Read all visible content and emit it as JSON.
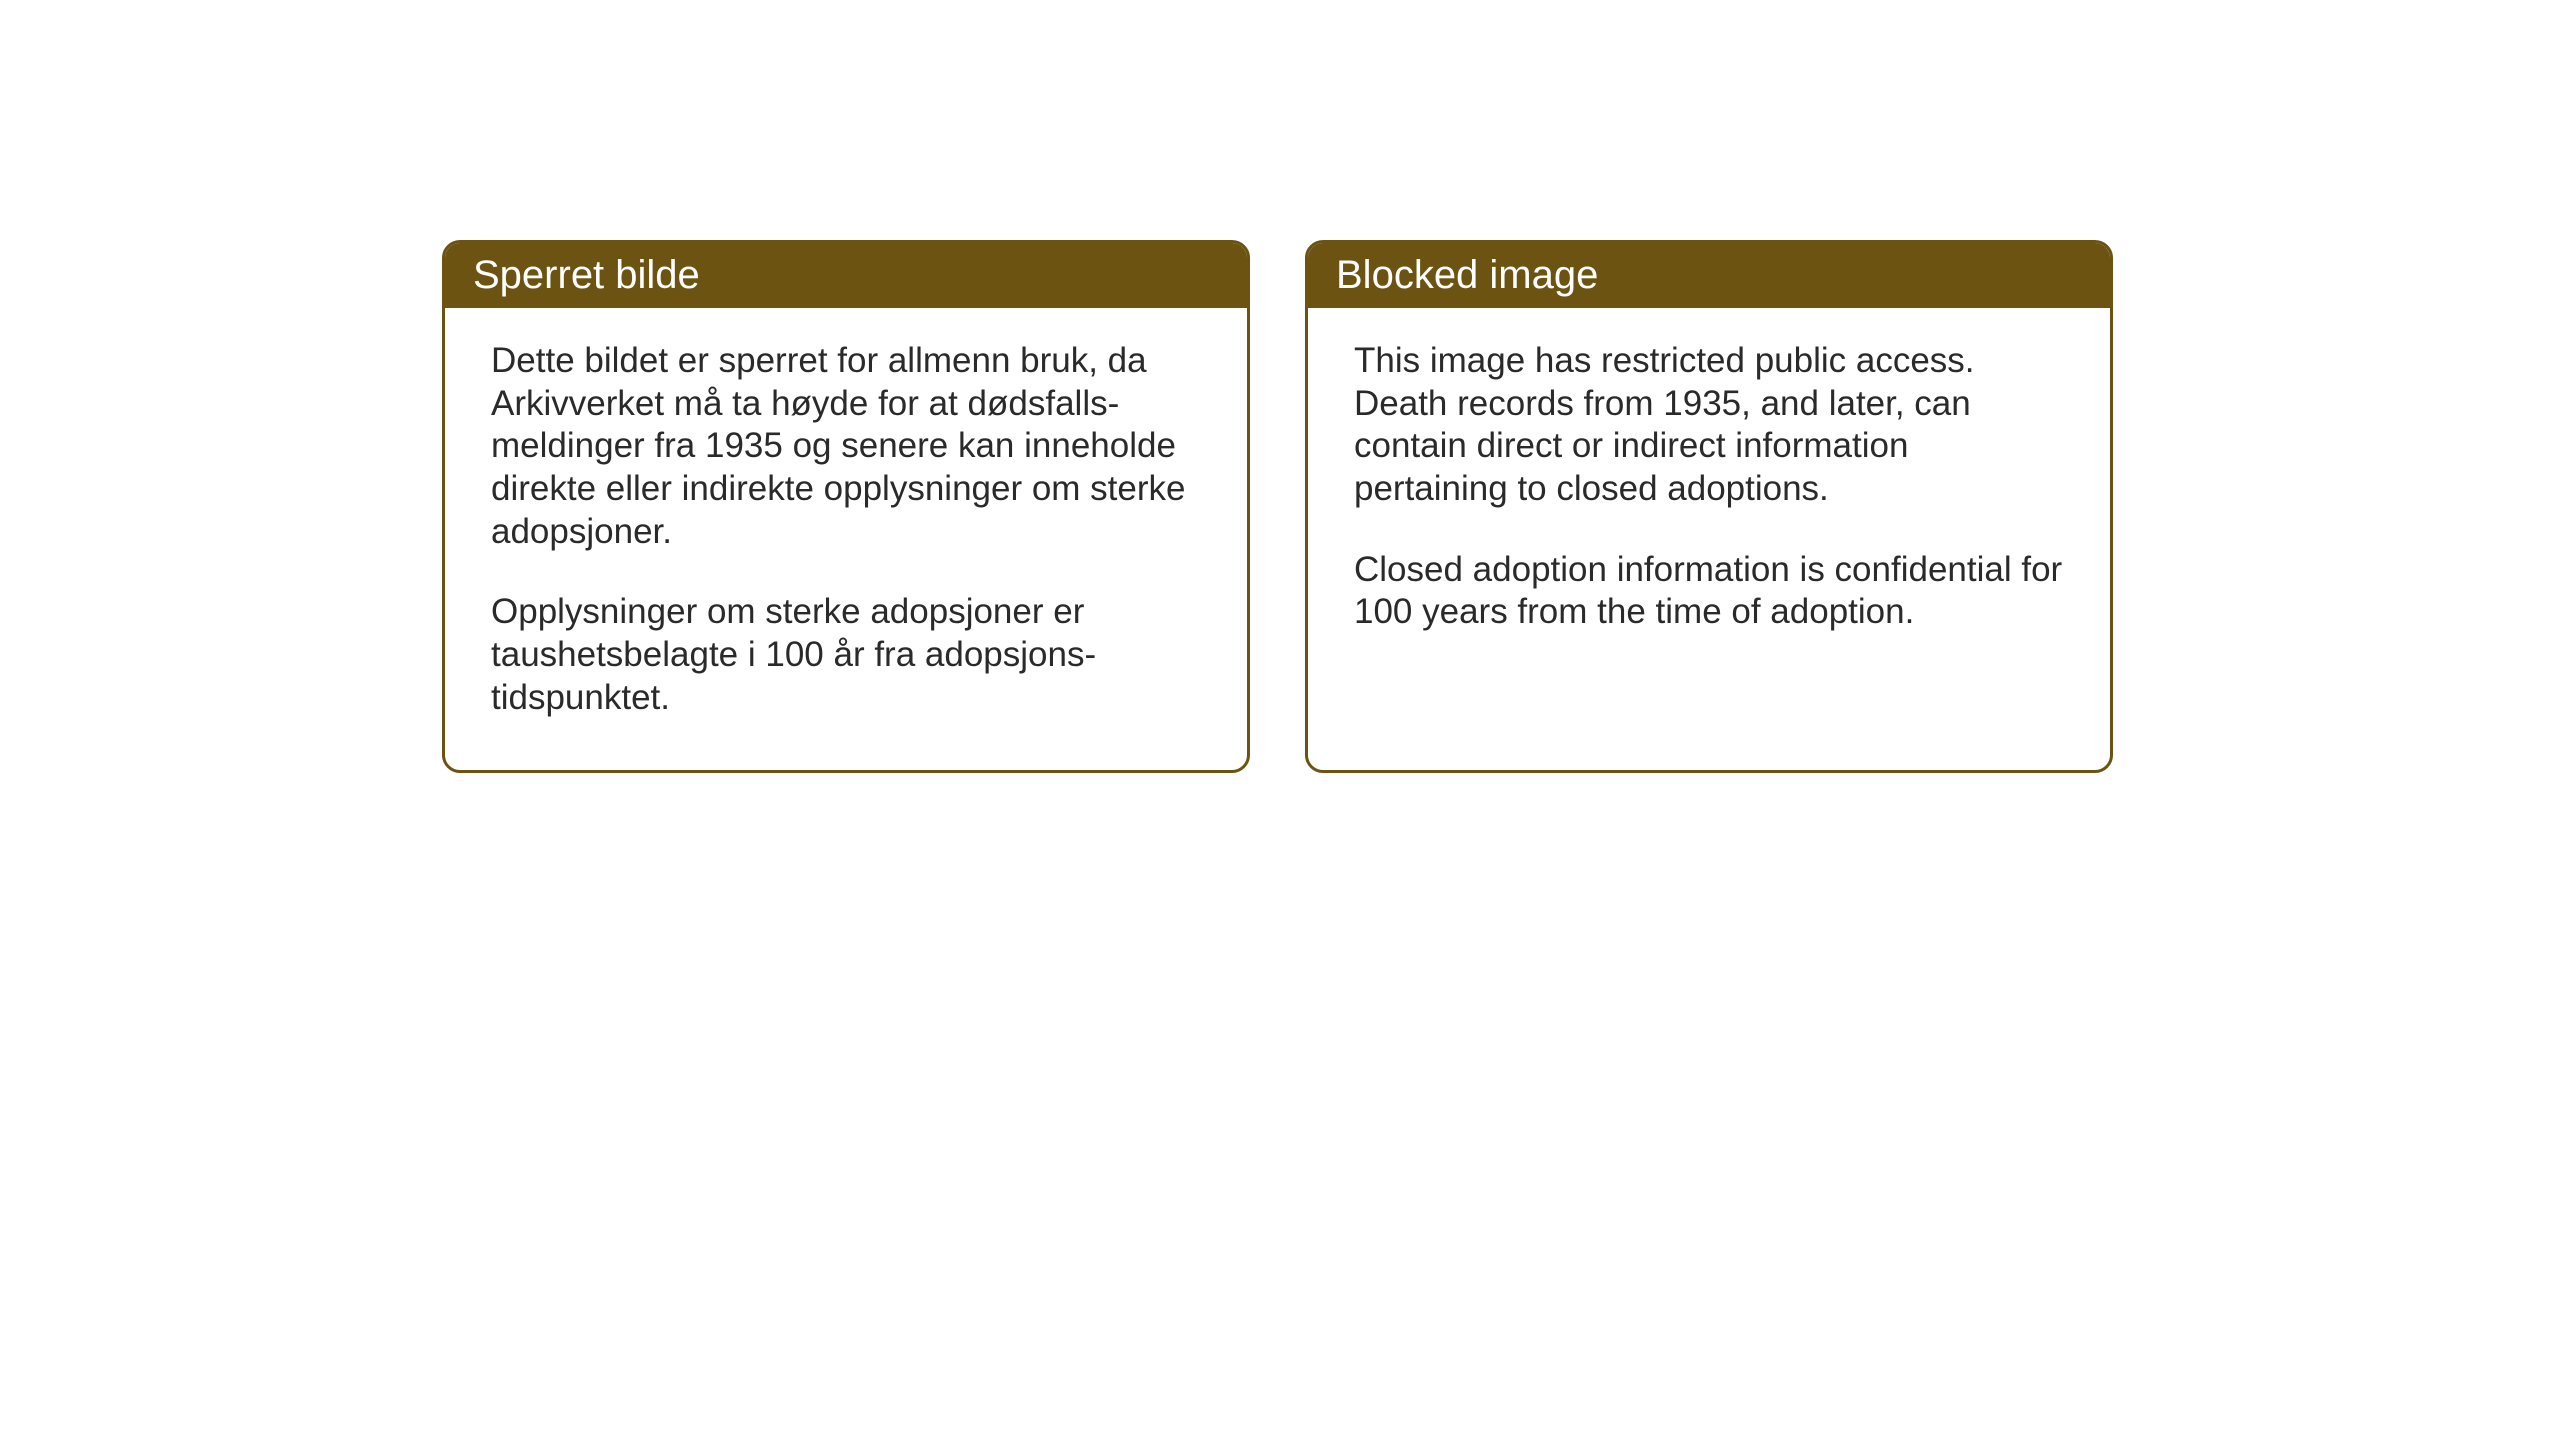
{
  "cards": [
    {
      "title": "Sperret bilde",
      "paragraph1": "Dette bildet er sperret for allmenn bruk,\nda Arkivverket må ta høyde for at dødsfalls-\nmeldinger fra 1935 og senere kan inneholde direkte eller indirekte opplysninger om sterke adopsjoner.",
      "paragraph2": "Opplysninger om sterke adopsjoner er taushetsbelagte i 100 år fra adopsjons-\ntidspunktet."
    },
    {
      "title": "Blocked image",
      "paragraph1": "This image has restricted public access. Death records from 1935, and later, can contain direct or indirect information pertaining to closed adoptions.",
      "paragraph2": "Closed adoption information is confidential for 100 years from the time of adoption."
    }
  ],
  "styling": {
    "header_background_color": "#6d5312",
    "header_text_color": "#ffffff",
    "border_color": "#6d5312",
    "card_background_color": "#ffffff",
    "body_text_color": "#2a2a2a",
    "header_font_size": 40,
    "body_font_size": 35,
    "border_radius": 18,
    "border_width": 3
  }
}
